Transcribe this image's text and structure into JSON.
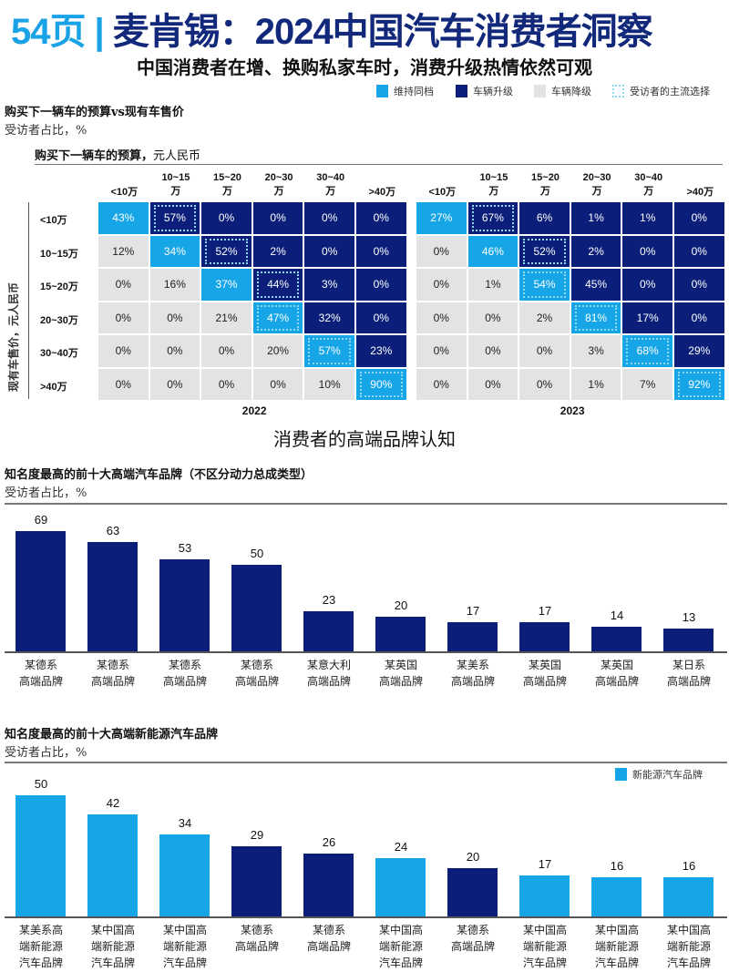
{
  "header": {
    "page": "54页",
    "separator": "|",
    "title": "麦肯锡：2024中国汽车消费者洞察",
    "subtitle": "中国消费者在增、换购私家车时，消费升级热情依然可观"
  },
  "legend": {
    "items": [
      {
        "label": "维持同档",
        "color": "#16a6e8"
      },
      {
        "label": "车辆升级",
        "color": "#0b1f7a"
      },
      {
        "label": "车辆降级",
        "color": "#e2e3e5"
      },
      {
        "label": "受访者的主流选择",
        "color": "#8fd8f5"
      }
    ]
  },
  "section1": {
    "title": "购买下一辆车的预算vs现有车售价",
    "sub": "受访者占比，%",
    "budget_label": "购买下一辆车的预算，",
    "budget_unit": "元人民币",
    "y_label": "现有车售价，元人民币"
  },
  "section2": {
    "heading": "消费者的高端品牌认知"
  },
  "chart_data": [
    {
      "type": "heatmap",
      "columns": [
        "<10万",
        "10~15万",
        "15~20万",
        "20~30万",
        "30~40万",
        ">40万"
      ],
      "rows": [
        "<10万",
        "10~15万",
        "15~20万",
        "20~30万",
        "30~40万",
        ">40万"
      ],
      "title": "2022",
      "values": [
        [
          43,
          57,
          0,
          0,
          0,
          0
        ],
        [
          12,
          34,
          52,
          2,
          0,
          0
        ],
        [
          0,
          16,
          37,
          44,
          3,
          0
        ],
        [
          0,
          0,
          21,
          47,
          32,
          0
        ],
        [
          0,
          0,
          0,
          20,
          57,
          23
        ],
        [
          0,
          0,
          0,
          0,
          10,
          90
        ]
      ],
      "mainstream": [
        [
          0,
          1
        ],
        [
          1,
          2
        ],
        [
          2,
          3
        ],
        [
          3,
          3
        ],
        [
          4,
          4
        ],
        [
          5,
          5
        ]
      ]
    },
    {
      "type": "heatmap",
      "columns": [
        "<10万",
        "10~15万",
        "15~20万",
        "20~30万",
        "30~40万",
        ">40万"
      ],
      "rows": [
        "<10万",
        "10~15万",
        "15~20万",
        "20~30万",
        "30~40万",
        ">40万"
      ],
      "title": "2023",
      "values": [
        [
          27,
          67,
          6,
          1,
          1,
          0
        ],
        [
          0,
          46,
          52,
          2,
          0,
          0
        ],
        [
          0,
          1,
          54,
          45,
          0,
          0
        ],
        [
          0,
          0,
          2,
          81,
          17,
          0
        ],
        [
          0,
          0,
          0,
          3,
          68,
          29
        ],
        [
          0,
          0,
          0,
          1,
          7,
          92
        ]
      ],
      "mainstream": [
        [
          0,
          1
        ],
        [
          1,
          2
        ],
        [
          2,
          2
        ],
        [
          3,
          3
        ],
        [
          4,
          4
        ],
        [
          5,
          5
        ]
      ]
    },
    {
      "type": "bar",
      "title": "知名度最高的前十大高端汽车品牌（不区分动力总成类型）",
      "subtitle": "受访者占比，%",
      "categories": [
        "某德系\n高端品牌",
        "某德系\n高端品牌",
        "某德系\n高端品牌",
        "某德系\n高端品牌",
        "某意大利\n高端品牌",
        "某英国\n高端品牌",
        "某美系\n高端品牌",
        "某英国\n高端品牌",
        "某英国\n高端品牌",
        "某日系\n高端品牌"
      ],
      "values": [
        69,
        63,
        53,
        50,
        23,
        20,
        17,
        17,
        14,
        13
      ],
      "color": "#0b1f7a"
    },
    {
      "type": "bar",
      "title": "知名度最高的前十大高端新能源汽车品牌",
      "subtitle": "受访者占比，%",
      "legend": "新能源汽车品牌",
      "categories": [
        "某美系高\n端新能源\n汽车品牌",
        "某中国高\n端新能源\n汽车品牌",
        "某中国高\n端新能源\n汽车品牌",
        "某德系\n高端品牌",
        "某德系\n高端品牌",
        "某中国高\n端新能源\n汽车品牌",
        "某德系\n高端品牌",
        "某中国高\n端新能源\n汽车品牌",
        "某中国高\n端新能源\n汽车品牌",
        "某中国高\n端新能源\n汽车品牌"
      ],
      "values": [
        50,
        42,
        34,
        29,
        26,
        24,
        20,
        17,
        16,
        16
      ],
      "nev": [
        true,
        true,
        true,
        false,
        false,
        true,
        false,
        true,
        true,
        true
      ],
      "colors": {
        "nev": "#16a6e8",
        "other": "#0b1f7a"
      }
    }
  ]
}
